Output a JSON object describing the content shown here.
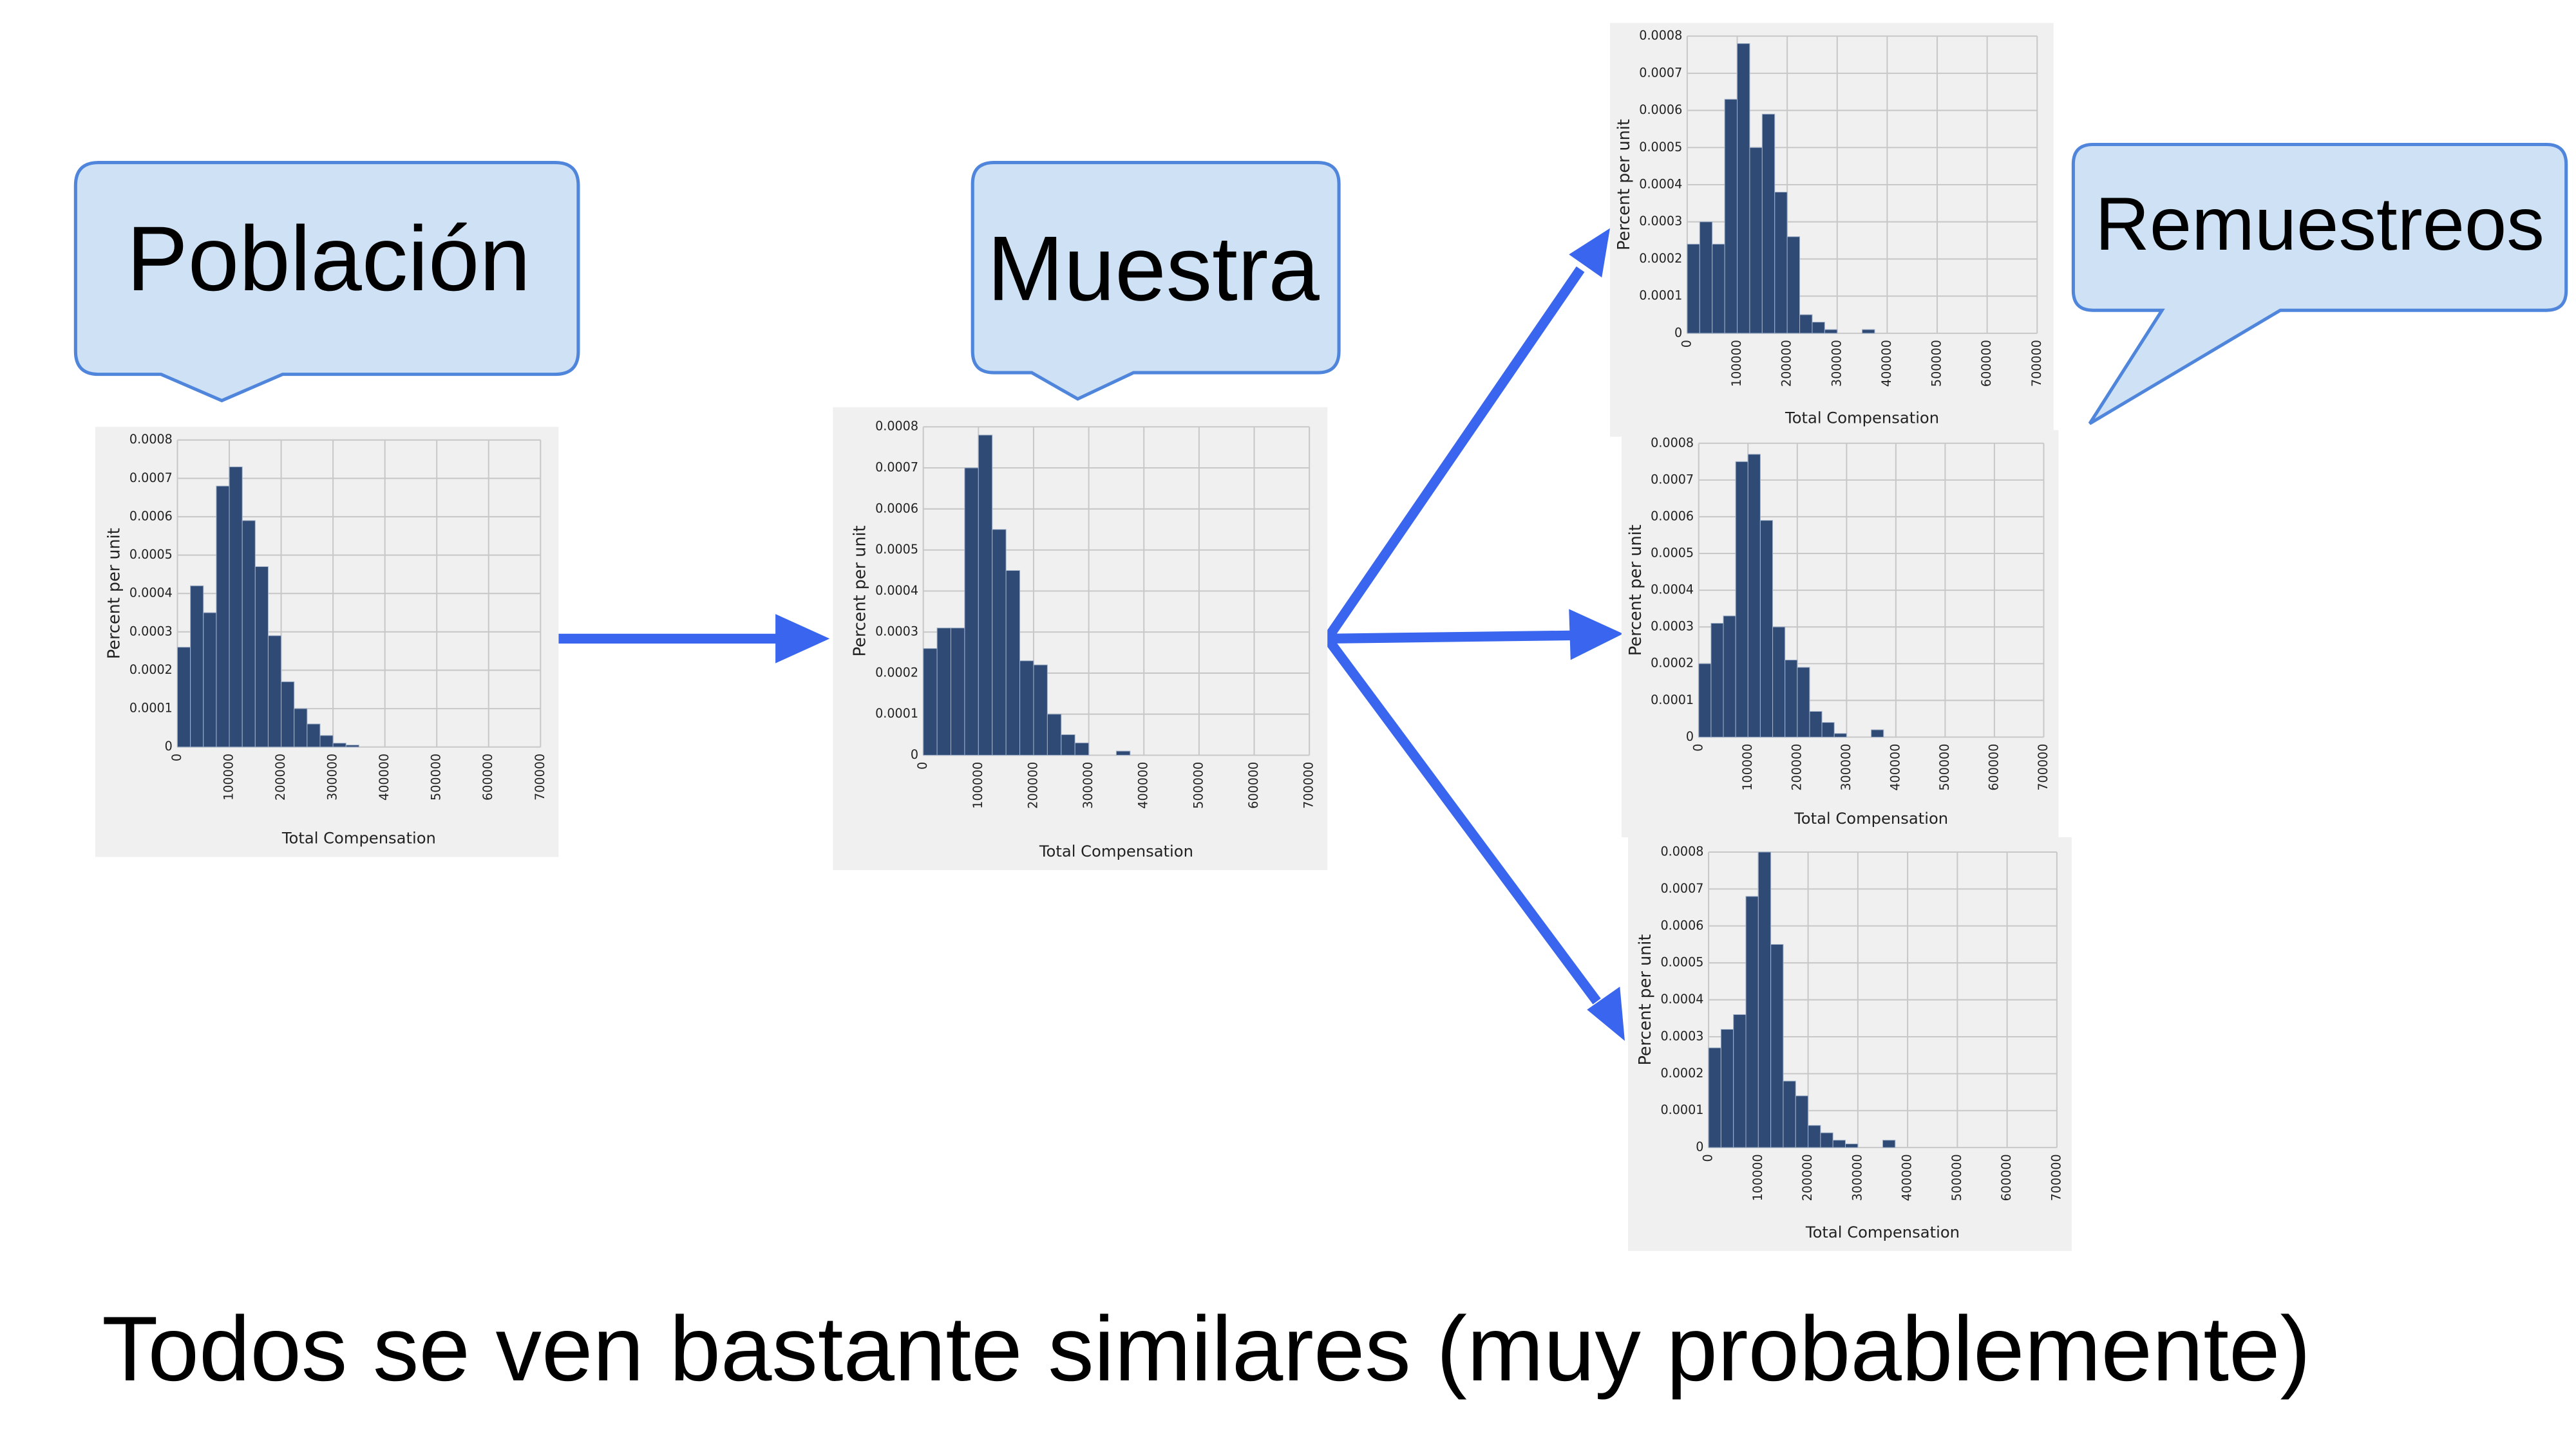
{
  "callouts": {
    "population": "Población",
    "sample": "Muestra",
    "resamples": "Remuestreos"
  },
  "caption": "Todos se ven bastante similares (muy probablemente)",
  "chart_data": [
    {
      "type": "histogram",
      "x_label": "Total Compensation",
      "y_label": "Percent per unit",
      "color": "#2e4a75",
      "grid": true,
      "bins": [
        0,
        25000,
        50000,
        75000,
        100000,
        125000,
        150000,
        175000,
        200000,
        225000,
        250000,
        275000,
        300000,
        325000,
        350000
      ],
      "values": [
        0.00026,
        0.00042,
        0.00035,
        0.00068,
        0.00073,
        0.00059,
        0.00047,
        0.00029,
        0.00017,
        0.0001,
        6e-05,
        3e-05,
        1e-05,
        5e-06
      ],
      "xlim": [
        0,
        700000
      ],
      "ylim": [
        0,
        0.0008
      ],
      "xticks": [
        0,
        100000,
        200000,
        300000,
        400000,
        500000,
        600000,
        700000
      ],
      "yticks": [
        0,
        0.0001,
        0.0002,
        0.0003,
        0.0004,
        0.0005,
        0.0006,
        0.0007,
        0.0008
      ]
    },
    {
      "type": "histogram",
      "x_label": "Total Compensation",
      "y_label": "Percent per unit",
      "color": "#2e4a75",
      "grid": true,
      "bins": [
        0,
        25000,
        50000,
        75000,
        100000,
        125000,
        150000,
        175000,
        200000,
        225000,
        250000,
        275000,
        300000,
        325000,
        350000,
        375000
      ],
      "values": [
        0.00026,
        0.00031,
        0.00031,
        0.0007,
        0.00078,
        0.00055,
        0.00045,
        0.00023,
        0.00022,
        0.0001,
        5e-05,
        3e-05,
        0,
        0,
        1e-05
      ],
      "xlim": [
        0,
        700000
      ],
      "ylim": [
        0,
        0.0008
      ],
      "xticks": [
        0,
        100000,
        200000,
        300000,
        400000,
        500000,
        600000,
        700000
      ],
      "yticks": [
        0,
        0.0001,
        0.0002,
        0.0003,
        0.0004,
        0.0005,
        0.0006,
        0.0007,
        0.0008
      ]
    },
    {
      "type": "histogram",
      "x_label": "Total Compensation",
      "y_label": "Percent per unit",
      "color": "#2e4a75",
      "grid": true,
      "bins": [
        0,
        25000,
        50000,
        75000,
        100000,
        125000,
        150000,
        175000,
        200000,
        225000,
        250000,
        275000,
        300000,
        325000,
        350000,
        375000
      ],
      "values": [
        0.00024,
        0.0003,
        0.00024,
        0.00063,
        0.00078,
        0.0005,
        0.00059,
        0.00038,
        0.00026,
        5e-05,
        3e-05,
        1e-05,
        0,
        0,
        1e-05
      ],
      "xlim": [
        0,
        700000
      ],
      "ylim": [
        0,
        0.0008
      ],
      "xticks": [
        0,
        100000,
        200000,
        300000,
        400000,
        500000,
        600000,
        700000
      ],
      "yticks": [
        0,
        0.0001,
        0.0002,
        0.0003,
        0.0004,
        0.0005,
        0.0006,
        0.0007,
        0.0008
      ]
    },
    {
      "type": "histogram",
      "x_label": "Total Compensation",
      "y_label": "Percent per unit",
      "color": "#2e4a75",
      "grid": true,
      "bins": [
        0,
        25000,
        50000,
        75000,
        100000,
        125000,
        150000,
        175000,
        200000,
        225000,
        250000,
        275000,
        300000,
        325000,
        350000,
        375000
      ],
      "values": [
        0.0002,
        0.00031,
        0.00033,
        0.00075,
        0.00077,
        0.00059,
        0.0003,
        0.00021,
        0.00019,
        7e-05,
        4e-05,
        1e-05,
        0,
        0,
        2e-05
      ],
      "xlim": [
        0,
        700000
      ],
      "ylim": [
        0,
        0.0008
      ],
      "xticks": [
        0,
        100000,
        200000,
        300000,
        400000,
        500000,
        600000,
        700000
      ],
      "yticks": [
        0,
        0.0001,
        0.0002,
        0.0003,
        0.0004,
        0.0005,
        0.0006,
        0.0007,
        0.0008
      ]
    },
    {
      "type": "histogram",
      "x_label": "Total Compensation",
      "y_label": "Percent per unit",
      "color": "#2e4a75",
      "grid": true,
      "bins": [
        0,
        25000,
        50000,
        75000,
        100000,
        125000,
        150000,
        175000,
        200000,
        225000,
        250000,
        275000,
        300000,
        325000,
        350000,
        375000
      ],
      "values": [
        0.00027,
        0.00032,
        0.00036,
        0.00068,
        0.0008,
        0.00055,
        0.00018,
        0.00014,
        6e-05,
        4e-05,
        2e-05,
        1e-05,
        0,
        0,
        2e-05
      ],
      "xlim": [
        0,
        700000
      ],
      "ylim": [
        0,
        0.0008
      ],
      "xticks": [
        0,
        100000,
        200000,
        300000,
        400000,
        500000,
        600000,
        700000
      ],
      "yticks": [
        0,
        0.0001,
        0.0002,
        0.0003,
        0.0004,
        0.0005,
        0.0006,
        0.0007,
        0.0008
      ]
    }
  ]
}
